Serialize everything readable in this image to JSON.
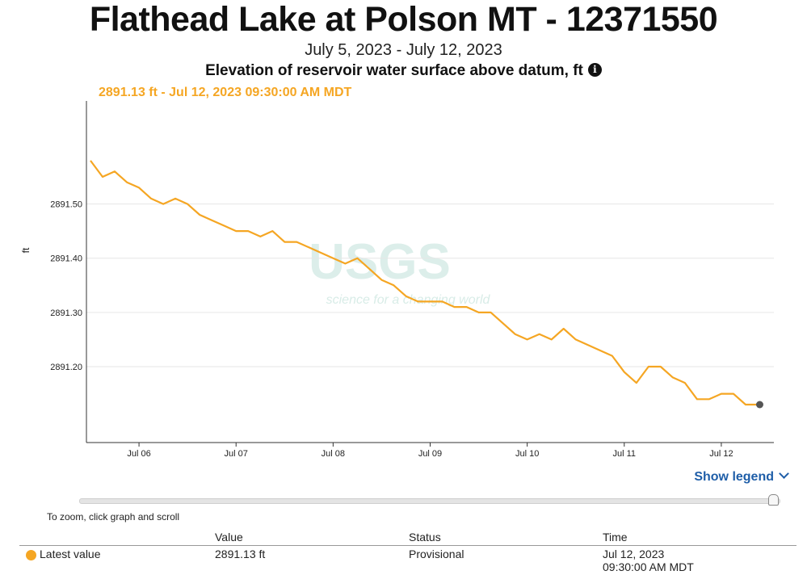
{
  "header": {
    "title": "Flathead Lake at Polson MT - 12371550",
    "date_range": "July 5, 2023 - July 12, 2023",
    "parameter": "Elevation of reservoir water surface above datum, ft",
    "info_icon": "info-icon"
  },
  "tooltip": {
    "text": "2891.13 ft - Jul 12, 2023 09:30:00 AM MDT"
  },
  "colors": {
    "series": "#f5a623",
    "grid": "#e6e6e6",
    "link": "#1f5ea8",
    "watermark": "#d6ebe6"
  },
  "watermark": {
    "logo": "USGS",
    "tagline": "science for a changing world"
  },
  "chart_data": {
    "type": "line",
    "title": "Elevation of reservoir water surface above datum, ft",
    "ylabel": "ft",
    "xlabel": "",
    "x_ticks": [
      "Jul 06",
      "Jul 07",
      "Jul 08",
      "Jul 09",
      "Jul 10",
      "Jul 11",
      "Jul 12"
    ],
    "y_ticks": [
      "2891.50",
      "2891.40",
      "2891.30",
      "2891.20"
    ],
    "x_range": [
      "2023-07-05 11:00",
      "2023-07-12 13:00"
    ],
    "y_range": [
      2891.06,
      2891.69
    ],
    "grid": "horizontal",
    "series": [
      {
        "name": "",
        "x": [
          "2023-07-05 12:00",
          "2023-07-05 15:00",
          "2023-07-05 18:00",
          "2023-07-05 21:00",
          "2023-07-06 00:00",
          "2023-07-06 03:00",
          "2023-07-06 06:00",
          "2023-07-06 09:00",
          "2023-07-06 12:00",
          "2023-07-06 15:00",
          "2023-07-06 18:00",
          "2023-07-06 21:00",
          "2023-07-07 00:00",
          "2023-07-07 03:00",
          "2023-07-07 06:00",
          "2023-07-07 09:00",
          "2023-07-07 12:00",
          "2023-07-07 15:00",
          "2023-07-07 18:00",
          "2023-07-07 21:00",
          "2023-07-08 00:00",
          "2023-07-08 03:00",
          "2023-07-08 06:00",
          "2023-07-08 09:00",
          "2023-07-08 12:00",
          "2023-07-08 15:00",
          "2023-07-08 18:00",
          "2023-07-08 21:00",
          "2023-07-09 00:00",
          "2023-07-09 03:00",
          "2023-07-09 06:00",
          "2023-07-09 09:00",
          "2023-07-09 12:00",
          "2023-07-09 15:00",
          "2023-07-09 18:00",
          "2023-07-09 21:00",
          "2023-07-10 00:00",
          "2023-07-10 03:00",
          "2023-07-10 06:00",
          "2023-07-10 09:00",
          "2023-07-10 12:00",
          "2023-07-10 15:00",
          "2023-07-10 18:00",
          "2023-07-10 21:00",
          "2023-07-11 00:00",
          "2023-07-11 03:00",
          "2023-07-11 06:00",
          "2023-07-11 09:00",
          "2023-07-11 12:00",
          "2023-07-11 15:00",
          "2023-07-11 18:00",
          "2023-07-11 21:00",
          "2023-07-12 00:00",
          "2023-07-12 03:00",
          "2023-07-12 06:00",
          "2023-07-12 09:30"
        ],
        "y": [
          2891.58,
          2891.55,
          2891.56,
          2891.54,
          2891.53,
          2891.51,
          2891.5,
          2891.51,
          2891.5,
          2891.48,
          2891.47,
          2891.46,
          2891.45,
          2891.45,
          2891.44,
          2891.45,
          2891.43,
          2891.43,
          2891.42,
          2891.41,
          2891.4,
          2891.39,
          2891.4,
          2891.38,
          2891.36,
          2891.35,
          2891.33,
          2891.32,
          2891.32,
          2891.32,
          2891.31,
          2891.31,
          2891.3,
          2891.3,
          2891.28,
          2891.26,
          2891.25,
          2891.26,
          2891.25,
          2891.27,
          2891.25,
          2891.24,
          2891.23,
          2891.22,
          2891.19,
          2891.17,
          2891.2,
          2891.2,
          2891.18,
          2891.17,
          2891.14,
          2891.14,
          2891.15,
          2891.15,
          2891.13,
          2891.13
        ]
      }
    ],
    "latest_point": {
      "x": "2023-07-12 09:30",
      "y": 2891.13
    }
  },
  "controls": {
    "show_legend": "Show legend",
    "zoom_hint": "To zoom, click graph and scroll"
  },
  "table": {
    "headers": [
      "Value",
      "Status",
      "Time"
    ],
    "row": {
      "label": "Latest value",
      "value": "2891.13 ft",
      "status": "Provisional",
      "time_line1": "Jul 12, 2023",
      "time_line2": "09:30:00 AM MDT"
    }
  }
}
